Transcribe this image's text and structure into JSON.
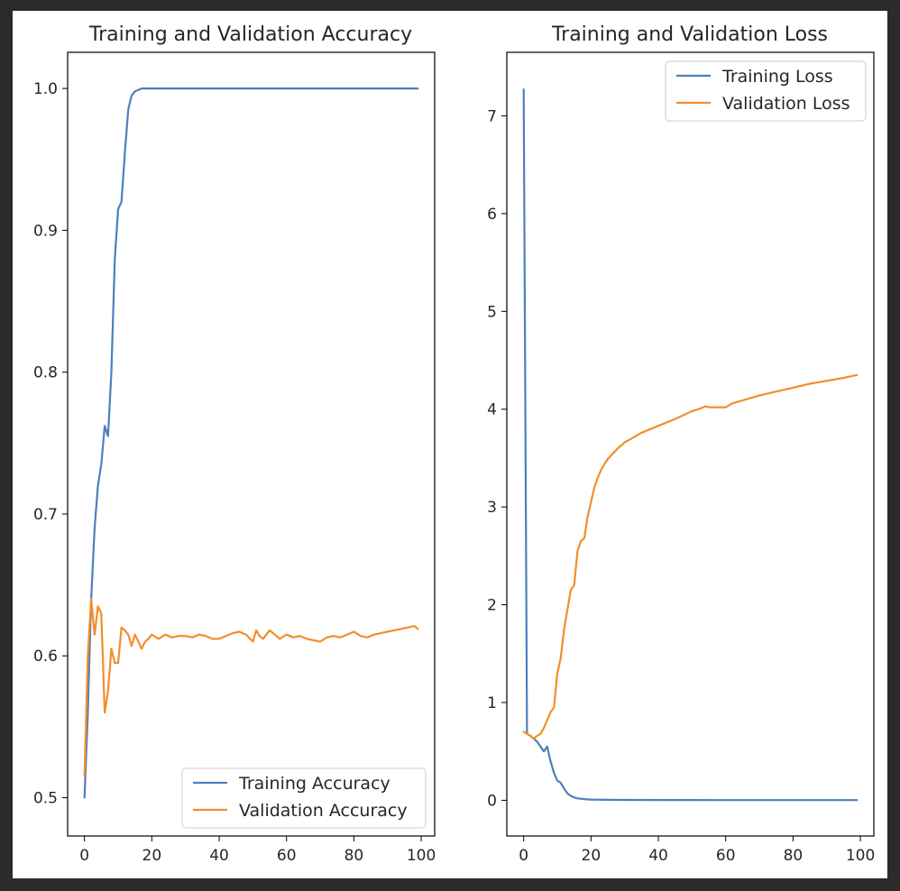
{
  "chart_data": [
    {
      "type": "line",
      "title": "Training and Validation Accuracy",
      "xlabel": "",
      "ylabel": "",
      "xlim": [
        -5,
        104
      ],
      "ylim": [
        0.473,
        1.0255
      ],
      "xticks": [
        0,
        20,
        40,
        60,
        80,
        100
      ],
      "yticks": [
        0.5,
        0.6,
        0.7,
        0.8,
        0.9,
        1.0
      ],
      "ytick_labels": [
        "0.5",
        "0.6",
        "0.7",
        "0.8",
        "0.9",
        "1.0"
      ],
      "legend_location": "lower-right",
      "series": [
        {
          "name": "Training Accuracy",
          "color": "#4c80bd",
          "x": [
            0,
            1,
            2,
            3,
            4,
            5,
            6,
            7,
            8,
            9,
            10,
            11,
            12,
            13,
            14,
            15,
            16,
            17,
            18,
            20,
            25,
            30,
            40,
            50,
            60,
            70,
            80,
            90,
            99
          ],
          "values": [
            0.5,
            0.56,
            0.64,
            0.69,
            0.72,
            0.735,
            0.762,
            0.755,
            0.8,
            0.88,
            0.915,
            0.92,
            0.955,
            0.985,
            0.995,
            0.998,
            0.999,
            1.0,
            1.0,
            1.0,
            1.0,
            1.0,
            1.0,
            1.0,
            1.0,
            1.0,
            1.0,
            1.0,
            1.0
          ]
        },
        {
          "name": "Validation Accuracy",
          "color": "#f28e2b",
          "x": [
            0,
            1,
            2,
            3,
            4,
            5,
            6,
            7,
            8,
            9,
            10,
            11,
            12,
            13,
            14,
            15,
            16,
            17,
            18,
            19,
            20,
            22,
            24,
            26,
            28,
            30,
            32,
            34,
            36,
            38,
            40,
            42,
            44,
            46,
            48,
            50,
            51,
            52,
            53,
            54,
            55,
            56,
            58,
            60,
            62,
            64,
            66,
            68,
            70,
            72,
            74,
            76,
            78,
            80,
            82,
            84,
            86,
            88,
            90,
            92,
            94,
            96,
            98,
            99
          ],
          "values": [
            0.515,
            0.6,
            0.64,
            0.615,
            0.635,
            0.63,
            0.56,
            0.575,
            0.605,
            0.595,
            0.595,
            0.62,
            0.618,
            0.615,
            0.607,
            0.615,
            0.61,
            0.605,
            0.61,
            0.612,
            0.615,
            0.612,
            0.615,
            0.613,
            0.614,
            0.614,
            0.613,
            0.615,
            0.614,
            0.612,
            0.612,
            0.614,
            0.616,
            0.617,
            0.615,
            0.61,
            0.618,
            0.614,
            0.612,
            0.615,
            0.618,
            0.616,
            0.612,
            0.615,
            0.613,
            0.614,
            0.612,
            0.611,
            0.61,
            0.613,
            0.614,
            0.613,
            0.615,
            0.617,
            0.614,
            0.613,
            0.615,
            0.616,
            0.617,
            0.618,
            0.619,
            0.62,
            0.621,
            0.619
          ]
        }
      ]
    },
    {
      "type": "line",
      "title": "Training and Validation Loss",
      "xlabel": "",
      "ylabel": "",
      "xlim": [
        -5,
        104
      ],
      "ylim": [
        -0.365,
        7.65
      ],
      "xticks": [
        0,
        20,
        40,
        60,
        80,
        100
      ],
      "yticks": [
        0,
        1,
        2,
        3,
        4,
        5,
        6,
        7
      ],
      "ytick_labels": [
        "0",
        "1",
        "2",
        "3",
        "4",
        "5",
        "6",
        "7"
      ],
      "legend_location": "upper-right",
      "series": [
        {
          "name": "Training Loss",
          "color": "#4c80bd",
          "x": [
            0,
            1,
            2,
            3,
            4,
            5,
            6,
            7,
            8,
            9,
            10,
            11,
            12,
            13,
            14,
            15,
            16,
            18,
            20,
            25,
            30,
            40,
            60,
            80,
            99
          ],
          "values": [
            7.27,
            0.68,
            0.66,
            0.63,
            0.6,
            0.55,
            0.5,
            0.55,
            0.4,
            0.28,
            0.2,
            0.18,
            0.12,
            0.07,
            0.045,
            0.03,
            0.02,
            0.012,
            0.008,
            0.005,
            0.004,
            0.003,
            0.002,
            0.002,
            0.002
          ]
        },
        {
          "name": "Validation Loss",
          "color": "#f28e2b",
          "x": [
            0,
            1,
            2,
            3,
            4,
            5,
            6,
            7,
            8,
            9,
            10,
            11,
            12,
            13,
            14,
            15,
            16,
            17,
            18,
            19,
            20,
            21,
            22,
            23,
            24,
            25,
            26,
            28,
            30,
            32,
            35,
            40,
            45,
            50,
            52,
            54,
            55,
            60,
            62,
            65,
            70,
            75,
            80,
            85,
            90,
            95,
            99
          ],
          "values": [
            0.7,
            0.68,
            0.66,
            0.63,
            0.66,
            0.68,
            0.74,
            0.82,
            0.9,
            0.95,
            1.3,
            1.45,
            1.75,
            1.95,
            2.15,
            2.2,
            2.55,
            2.65,
            2.68,
            2.9,
            3.05,
            3.2,
            3.3,
            3.38,
            3.44,
            3.49,
            3.53,
            3.6,
            3.66,
            3.7,
            3.76,
            3.83,
            3.9,
            3.98,
            4.0,
            4.03,
            4.02,
            4.02,
            4.06,
            4.09,
            4.14,
            4.18,
            4.22,
            4.26,
            4.29,
            4.32,
            4.35
          ]
        }
      ]
    }
  ]
}
